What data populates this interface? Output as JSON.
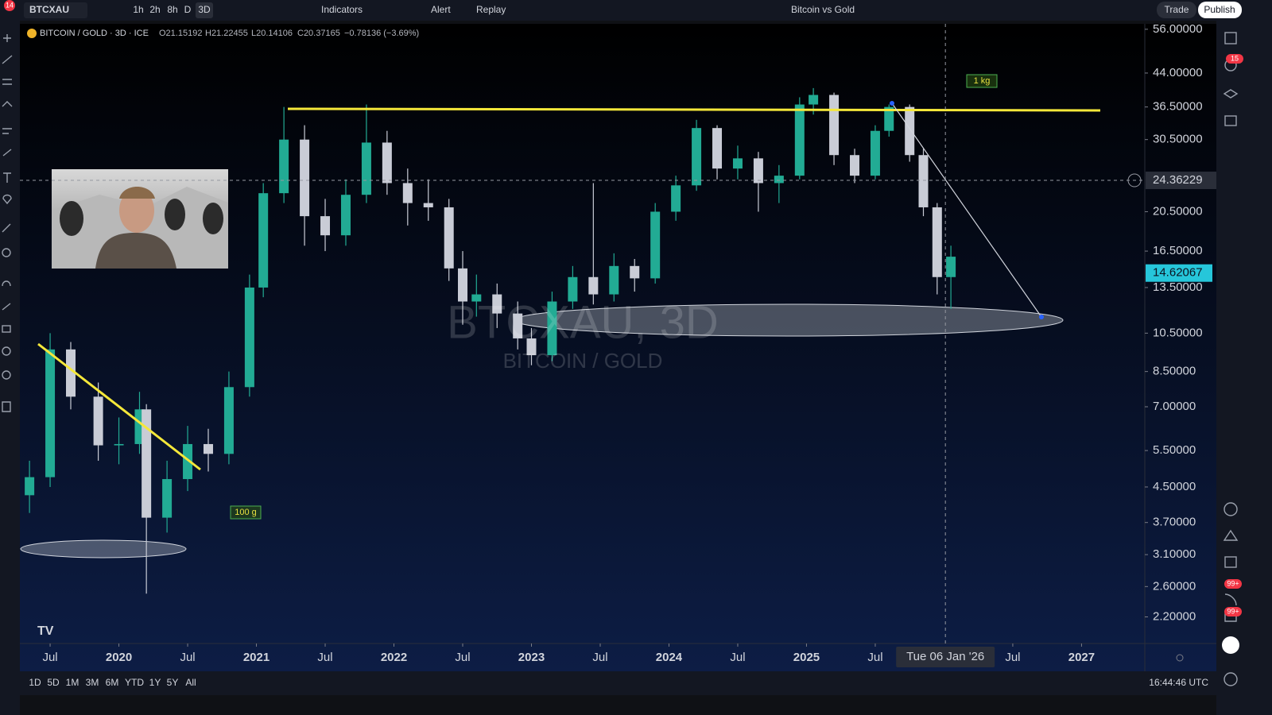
{
  "toolbar": {
    "symbol": "BTCXAU",
    "intervals": [
      "1h",
      "2h",
      "8h",
      "D",
      "3D"
    ],
    "indicators": "Indicators",
    "alert": "Alert",
    "replay": "Replay",
    "layout_name": "Bitcoin vs Gold",
    "trade": "Trade",
    "publish": "Publish",
    "notification_badge": "14"
  },
  "sidebar_badges": [
    "15",
    "99+",
    "99+"
  ],
  "legend": {
    "title": "BITCOIN / GOLD · 3D · ICE",
    "open": "O21.15192",
    "high": "H21.22455",
    "low": "L20.14106",
    "close": "C20.37165",
    "change": "−0.78136 (−3.69%)"
  },
  "bottom_bar": {
    "ranges": [
      "1D",
      "5D",
      "1M",
      "3M",
      "6M",
      "YTD",
      "1Y",
      "5Y",
      "All"
    ],
    "clock": "16:44:46 UTC"
  },
  "chart_data": {
    "type": "candlestick",
    "watermark_symbol": "BTCXAU, 3D",
    "watermark_name": "BITCOIN / GOLD",
    "annotations": [
      "1 kg",
      "100 g"
    ],
    "log_scale": true,
    "up_color": "#22ab94",
    "down_color": "#c9ccd6",
    "xlim": [
      2019.28,
      2027.46
    ],
    "ylim": [
      1.9,
      57.7
    ],
    "xticks": [
      {
        "value": 2019.5,
        "label": "Jul"
      },
      2020,
      {
        "value": 2020.5,
        "label": "Jul"
      },
      2021,
      {
        "value": 2021.5,
        "label": "Jul"
      },
      2022,
      {
        "value": 2022.5,
        "label": "Jul"
      },
      2023,
      {
        "value": 2023.5,
        "label": "Jul"
      },
      2024,
      {
        "value": 2024.5,
        "label": "Jul"
      },
      2025,
      {
        "value": 2025.5,
        "label": "Jul"
      },
      {
        "value": 2026.5,
        "label": "Jul"
      },
      2027
    ],
    "yticks": [
      {
        "value": 56,
        "label": "56.00000"
      },
      {
        "value": 44,
        "label": "44.00000"
      },
      {
        "value": 36.5,
        "label": "36.50000"
      },
      {
        "value": 30.5,
        "label": "30.50000"
      },
      {
        "value": 20.5,
        "label": "20.50000"
      },
      {
        "value": 16.5,
        "label": "16.50000"
      },
      {
        "value": 13.5,
        "label": "13.50000"
      },
      {
        "value": 10.5,
        "label": "10.50000"
      },
      {
        "value": 8.5,
        "label": "8.50000"
      },
      {
        "value": 7,
        "label": "7.00000"
      },
      {
        "value": 5.5,
        "label": "5.50000"
      },
      {
        "value": 4.5,
        "label": "4.50000"
      },
      {
        "value": 3.7,
        "label": "3.70000"
      },
      {
        "value": 3.1,
        "label": "3.10000"
      },
      {
        "value": 2.6,
        "label": "2.60000"
      },
      {
        "value": 2.2,
        "label": "2.20000"
      }
    ],
    "crosshair": {
      "x": {
        "value": 2026.01,
        "label": "Tue 06 Jan '26"
      },
      "y": 24.36229
    },
    "last_price": 14.62067,
    "x": [
      2019.35,
      2019.5,
      2019.65,
      2019.85,
      2020.0,
      2020.15,
      2020.2,
      2020.35,
      2020.5,
      2020.65,
      2020.8,
      2020.95,
      2021.05,
      2021.2,
      2021.35,
      2021.5,
      2021.65,
      2021.8,
      2021.95,
      2022.1,
      2022.25,
      2022.4,
      2022.5,
      2022.6,
      2022.75,
      2022.9,
      2023.0,
      2023.15,
      2023.3,
      2023.45,
      2023.6,
      2023.75,
      2023.9,
      2024.05,
      2024.2,
      2024.35,
      2024.5,
      2024.65,
      2024.8,
      2024.95,
      2025.05,
      2025.2,
      2025.35,
      2025.5,
      2025.6,
      2025.75,
      2025.85,
      2025.95,
      2026.05
    ],
    "open": [
      4.3,
      4.75,
      9.6,
      7.4,
      5.66,
      5.7,
      6.9,
      3.8,
      4.7,
      5.7,
      5.4,
      7.8,
      13.5,
      22.7,
      30.5,
      20,
      18,
      22.5,
      30,
      24,
      21.5,
      21,
      15,
      12.5,
      13,
      11.7,
      10.2,
      9.3,
      12.5,
      14.3,
      13,
      15.2,
      14.2,
      20.5,
      23.7,
      32.5,
      26,
      27.5,
      24,
      25,
      37,
      39,
      28,
      25,
      32,
      36.5,
      28,
      21,
      14.3
    ],
    "high": [
      5.2,
      10.5,
      10,
      8,
      6.6,
      7.6,
      7.1,
      5.2,
      6.3,
      6.2,
      8.5,
      14.5,
      24,
      36.5,
      33,
      22,
      24.5,
      37,
      32,
      26,
      24.5,
      22,
      16.5,
      14.5,
      13.8,
      12.5,
      10.8,
      13.2,
      15.2,
      24,
      16.3,
      15.8,
      21.5,
      25,
      34,
      33,
      29.5,
      28.5,
      26.5,
      38.5,
      40.5,
      39.5,
      29,
      33,
      37,
      37,
      29,
      21.5,
      17
    ],
    "low": [
      3.9,
      4.5,
      6.9,
      5.2,
      5.1,
      5.4,
      2.5,
      3.5,
      4.4,
      4.9,
      5.1,
      7.4,
      12.8,
      21.5,
      17,
      16.5,
      17,
      21.5,
      22.5,
      19,
      19.5,
      14,
      11,
      11.5,
      10.8,
      9.6,
      8.8,
      9,
      12,
      12.3,
      12.5,
      13.2,
      13.8,
      19.5,
      23,
      24.5,
      24.5,
      20.5,
      21.5,
      24.5,
      35,
      26.5,
      24,
      24.5,
      31,
      27,
      20,
      13,
      12
    ],
    "close": [
      4.75,
      9.6,
      7.4,
      5.66,
      5.7,
      6.9,
      3.8,
      4.7,
      5.7,
      5.4,
      7.8,
      13.5,
      22.7,
      30.5,
      20,
      18,
      22.5,
      30,
      24,
      21.5,
      21,
      15,
      12.5,
      13,
      11.7,
      10.2,
      9.3,
      12.5,
      14.3,
      13,
      15.2,
      14.2,
      20.5,
      23.7,
      32.5,
      26,
      27.5,
      24,
      25,
      37,
      39,
      28,
      25,
      32,
      36.5,
      28,
      21,
      14.3,
      16
    ]
  }
}
